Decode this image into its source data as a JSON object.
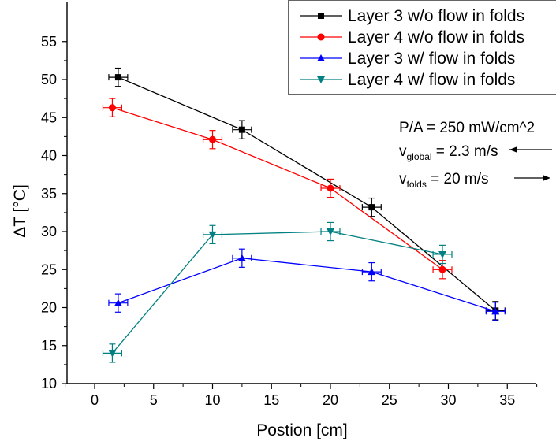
{
  "chart_data": {
    "type": "line",
    "title": "",
    "xlabel": "Postion [cm]",
    "ylabel": "ΔT [°C]",
    "xlim": [
      -4,
      38
    ],
    "ylim": [
      10,
      55
    ],
    "xticks": [
      0,
      5,
      10,
      15,
      20,
      25,
      30,
      35
    ],
    "yticks": [
      10,
      15,
      20,
      25,
      30,
      35,
      40,
      45,
      50,
      55
    ],
    "grid": false,
    "legend_position": "top-right",
    "series": [
      {
        "name": "Layer 3 w/o flow in folds",
        "color": "#000000",
        "marker": "square",
        "x": [
          2,
          12.5,
          23.5,
          34
        ],
        "y": [
          50.3,
          43.4,
          33.2,
          19.6
        ],
        "xerr": 0.8,
        "yerr": 1.2
      },
      {
        "name": "Layer 4 w/o flow in folds",
        "color": "#ff0000",
        "marker": "circle",
        "x": [
          1.5,
          10,
          20,
          29.5
        ],
        "y": [
          46.3,
          42.1,
          35.7,
          25.0
        ],
        "xerr": 0.8,
        "yerr": 1.2
      },
      {
        "name": "Layer 3 w/ flow in folds",
        "color": "#0000ff",
        "marker": "triangle-up",
        "x": [
          2,
          12.5,
          23.5,
          34
        ],
        "y": [
          20.6,
          26.5,
          24.7,
          19.5
        ],
        "xerr": 0.8,
        "yerr": 1.2
      },
      {
        "name": "Layer 4 w/ flow in folds",
        "color": "#008080",
        "marker": "triangle-down",
        "x": [
          1.5,
          10,
          20,
          29.5
        ],
        "y": [
          14.0,
          29.6,
          30.0,
          27.0
        ],
        "xerr": 0.8,
        "yerr": 1.2
      }
    ],
    "annotations": {
      "power": "P/A = 250 mW/cm^2",
      "v_global_symbol": "v",
      "v_global_sub": "global",
      "v_global_value": " = 2.3 m/s",
      "v_folds_symbol": "v",
      "v_folds_sub": "folds",
      "v_folds_value": " = 20 m/s"
    }
  }
}
